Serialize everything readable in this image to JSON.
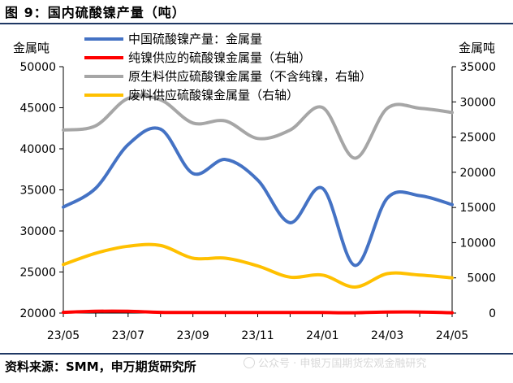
{
  "figure": {
    "title": "图 9：国内硫酸镍产量（吨）",
    "source": "资料来源：SMM，申万期货研究所",
    "watermark": "公众号 · 申银万国期货宏观金融研究"
  },
  "chart_data": {
    "type": "line",
    "x": [
      "23/05",
      "23/06",
      "23/07",
      "23/08",
      "23/09",
      "23/10",
      "23/11",
      "23/12",
      "24/01",
      "24/02",
      "24/03",
      "24/04",
      "24/05"
    ],
    "x_tick_labels": [
      "23/05",
      "23/07",
      "23/09",
      "23/11",
      "24/01",
      "24/03",
      "24/05"
    ],
    "y_left": {
      "label": "金属吨",
      "range": [
        20000,
        50000
      ],
      "ticks": [
        20000,
        25000,
        30000,
        35000,
        40000,
        45000,
        50000
      ]
    },
    "y_right": {
      "label": "金属吨",
      "range": [
        0,
        35000
      ],
      "ticks": [
        0,
        5000,
        10000,
        15000,
        20000,
        25000,
        30000,
        35000
      ]
    },
    "legend_position": "top",
    "grid": false,
    "series": [
      {
        "name": "中国硫酸镍产量：金属量",
        "axis": "left",
        "color": "#4472c4",
        "values": [
          32900,
          35200,
          40500,
          42400,
          37000,
          38700,
          36200,
          31000,
          35200,
          25800,
          34000,
          34300,
          33200
        ]
      },
      {
        "name": "纯镍供应的硫酸镍金属量（右轴）",
        "axis": "right",
        "color": "#ff0000",
        "values": [
          100,
          250,
          250,
          100,
          80,
          80,
          80,
          80,
          80,
          50,
          150,
          150,
          50
        ]
      },
      {
        "name": "原生料供应硫酸镍金属量（不含纯镍，右轴）",
        "axis": "right",
        "color": "#a6a6a6",
        "values": [
          26000,
          26600,
          30500,
          30300,
          27000,
          27300,
          24800,
          26000,
          29200,
          22000,
          29100,
          29100,
          28500
        ]
      },
      {
        "name": "废料供应硫酸镍金属量（右轴）",
        "axis": "right",
        "color": "#ffc000",
        "values": [
          6900,
          8500,
          9500,
          9600,
          7800,
          7800,
          6700,
          5100,
          5400,
          3700,
          5600,
          5400,
          5000
        ]
      }
    ]
  }
}
